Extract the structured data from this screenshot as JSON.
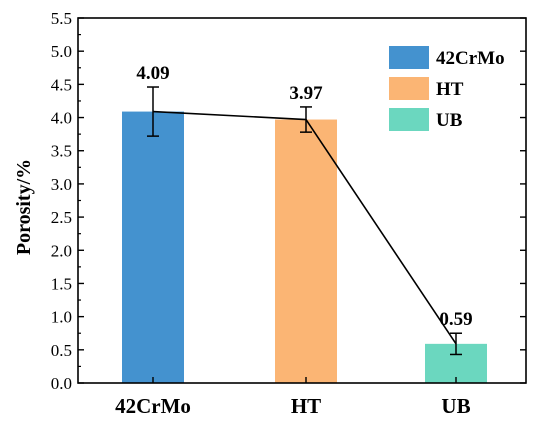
{
  "chart_data": {
    "type": "bar",
    "categories": [
      "42CrMo",
      "HT",
      "UB"
    ],
    "values": [
      4.09,
      3.97,
      0.59
    ],
    "errors": [
      0.37,
      0.19,
      0.16
    ],
    "data_labels": [
      "4.09",
      "3.97",
      "0.59"
    ],
    "colors": [
      "#4492cf",
      "#fbb574",
      "#6bd7bf"
    ],
    "ylabel": "Porosity/%",
    "xlabel": "",
    "title": "",
    "ylim": [
      0,
      5.5
    ],
    "yticks": [
      "0.0",
      "0.5",
      "1.0",
      "1.5",
      "2.0",
      "2.5",
      "3.0",
      "3.5",
      "4.0",
      "4.5",
      "5.0",
      "5.5"
    ],
    "legend": {
      "placement": "top-right",
      "entries": [
        "42CrMo",
        "HT",
        "UB"
      ]
    },
    "connecting_line": true,
    "grid": false
  }
}
